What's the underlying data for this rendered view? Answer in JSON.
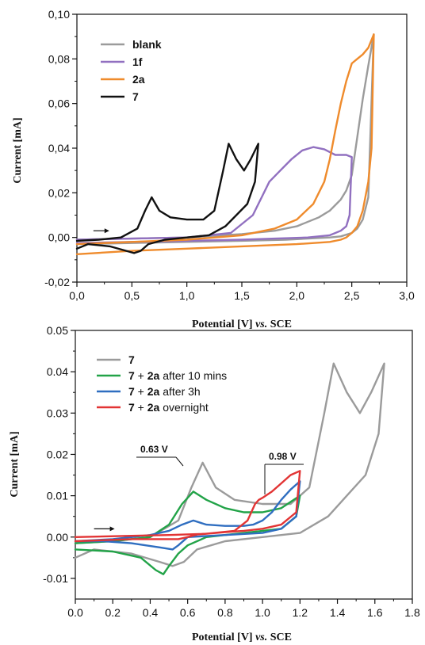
{
  "chart_data": [
    {
      "type": "line",
      "xlabel": {
        "main": "Potential [V] ",
        "italic": "vs.",
        "tail": " SCE"
      },
      "ylabel": "Current [mA]",
      "xlim": [
        0,
        3
      ],
      "ylim": [
        -0.02,
        0.1
      ],
      "xticks": [
        "0,0",
        "0,5",
        "1,0",
        "1,5",
        "2,0",
        "2,5",
        "3,0"
      ],
      "xtick_values": [
        0,
        0.5,
        1,
        1.5,
        2,
        2.5,
        3
      ],
      "yticks": [
        "-0,02",
        "0,00",
        "0,02",
        "0,04",
        "0,06",
        "0,08",
        "0,10"
      ],
      "ytick_values": [
        -0.02,
        0,
        0.02,
        0.04,
        0.06,
        0.08,
        0.1
      ],
      "legend_position": "top-left",
      "scan_direction_arrow": {
        "x": 0.15,
        "y": 0.003
      },
      "series": [
        {
          "name": "blank",
          "bold": true,
          "color": "#9b9b9b",
          "x": [
            0.0,
            0.5,
            1.0,
            1.5,
            1.8,
            2.0,
            2.2,
            2.3,
            2.4,
            2.45,
            2.5,
            2.55,
            2.6,
            2.65,
            2.7,
            2.65,
            2.6,
            2.55,
            2.5,
            2.4,
            2.3,
            2.1,
            1.9,
            1.5,
            1.0,
            0.5,
            0.0
          ],
          "y": [
            -0.001,
            -0.0005,
            0.0,
            0.0015,
            0.003,
            0.005,
            0.009,
            0.012,
            0.017,
            0.021,
            0.028,
            0.045,
            0.062,
            0.077,
            0.091,
            0.018,
            0.008,
            0.004,
            0.002,
            0.0005,
            0.0,
            -0.0005,
            -0.001,
            -0.0015,
            -0.002,
            -0.0025,
            -0.003
          ]
        },
        {
          "name": "1f",
          "bold": true,
          "color": "#9170c0",
          "x": [
            0.0,
            0.5,
            1.0,
            1.4,
            1.6,
            1.68,
            1.75,
            1.85,
            1.95,
            2.05,
            2.15,
            2.25,
            2.35,
            2.45,
            2.5,
            2.48,
            2.45,
            2.4,
            2.3,
            2.1,
            1.8,
            1.5,
            1.0,
            0.5,
            0.0
          ],
          "y": [
            -0.001,
            -0.0005,
            0.0,
            0.002,
            0.01,
            0.018,
            0.025,
            0.03,
            0.035,
            0.039,
            0.0405,
            0.0395,
            0.037,
            0.037,
            0.036,
            0.01,
            0.005,
            0.003,
            0.001,
            0.0,
            -0.0005,
            -0.001,
            -0.0015,
            -0.002,
            -0.0025
          ]
        },
        {
          "name": "2a",
          "bold": true,
          "color": "#ef8b2c",
          "x": [
            0.0,
            0.5,
            1.0,
            1.5,
            1.8,
            2.0,
            2.15,
            2.25,
            2.3,
            2.35,
            2.4,
            2.45,
            2.5,
            2.55,
            2.6,
            2.65,
            2.7,
            2.68,
            2.65,
            2.6,
            2.55,
            2.5,
            2.45,
            2.4,
            2.3,
            2.0,
            1.5,
            1.0,
            0.5,
            0.0
          ],
          "y": [
            -0.003,
            -0.002,
            -0.001,
            0.001,
            0.004,
            0.008,
            0.015,
            0.025,
            0.035,
            0.048,
            0.06,
            0.07,
            0.078,
            0.08,
            0.082,
            0.085,
            0.091,
            0.04,
            0.025,
            0.012,
            0.005,
            0.002,
            0.0,
            -0.001,
            -0.002,
            -0.003,
            -0.004,
            -0.005,
            -0.006,
            -0.0075
          ]
        },
        {
          "name": "7",
          "bold": true,
          "color": "#111111",
          "x": [
            0.0,
            0.2,
            0.4,
            0.55,
            0.62,
            0.68,
            0.75,
            0.85,
            1.0,
            1.15,
            1.25,
            1.33,
            1.38,
            1.45,
            1.52,
            1.58,
            1.65,
            1.62,
            1.55,
            1.45,
            1.35,
            1.2,
            1.0,
            0.8,
            0.65,
            0.58,
            0.52,
            0.45,
            0.3,
            0.1,
            0.0
          ],
          "y": [
            -0.0015,
            -0.001,
            0.0,
            0.004,
            0.012,
            0.018,
            0.012,
            0.009,
            0.008,
            0.008,
            0.012,
            0.03,
            0.042,
            0.035,
            0.03,
            0.035,
            0.042,
            0.025,
            0.015,
            0.01,
            0.005,
            0.001,
            0.0,
            -0.001,
            -0.003,
            -0.006,
            -0.007,
            -0.006,
            -0.004,
            -0.003,
            -0.005
          ]
        }
      ]
    },
    {
      "type": "line",
      "xlabel": {
        "main": "Potential [V] ",
        "italic": "vs.",
        "tail": " SCE"
      },
      "ylabel": "Current [mA]",
      "xlim": [
        0,
        1.8
      ],
      "ylim": [
        -0.015,
        0.05
      ],
      "xticks": [
        "0.0",
        "0.2",
        "0.4",
        "0.6",
        "0.8",
        "1.0",
        "1.2",
        "1.4",
        "1.6",
        "1.8"
      ],
      "xtick_values": [
        0,
        0.2,
        0.4,
        0.6,
        0.8,
        1.0,
        1.2,
        1.4,
        1.6,
        1.8
      ],
      "yticks": [
        "-0.01",
        "0.00",
        "0.01",
        "0.02",
        "0.03",
        "0.04",
        "0.05"
      ],
      "ytick_values": [
        -0.01,
        0,
        0.01,
        0.02,
        0.03,
        0.04,
        0.05
      ],
      "legend_position": "top-left",
      "scan_direction_arrow": {
        "x": 0.1,
        "y": 0.002
      },
      "annotations": [
        {
          "text": "0.63 V",
          "x": 0.68,
          "y": 0.018
        },
        {
          "text": "0.98 V",
          "x": 0.98,
          "y": 0.011
        }
      ],
      "series": [
        {
          "name_parts": [
            {
              "t": "7",
              "b": true
            }
          ],
          "color": "#9b9b9b",
          "x": [
            0.0,
            0.2,
            0.4,
            0.55,
            0.62,
            0.68,
            0.75,
            0.85,
            1.0,
            1.15,
            1.25,
            1.33,
            1.38,
            1.45,
            1.52,
            1.58,
            1.65,
            1.62,
            1.55,
            1.45,
            1.35,
            1.2,
            1.0,
            0.8,
            0.65,
            0.58,
            0.52,
            0.45,
            0.3,
            0.1,
            0.0
          ],
          "y": [
            -0.0015,
            -0.001,
            0.0,
            0.004,
            0.012,
            0.018,
            0.012,
            0.009,
            0.008,
            0.008,
            0.012,
            0.03,
            0.042,
            0.035,
            0.03,
            0.035,
            0.042,
            0.025,
            0.015,
            0.01,
            0.005,
            0.001,
            0.0,
            -0.001,
            -0.003,
            -0.006,
            -0.007,
            -0.006,
            -0.004,
            -0.003,
            -0.005
          ]
        },
        {
          "name_parts": [
            {
              "t": "7",
              "b": true
            },
            {
              "t": " + ",
              "b": false
            },
            {
              "t": "2a",
              "b": true
            },
            {
              "t": " after 10 mins",
              "b": false
            }
          ],
          "color": "#22a348",
          "x": [
            0.0,
            0.2,
            0.4,
            0.5,
            0.57,
            0.63,
            0.7,
            0.8,
            0.9,
            1.0,
            1.1,
            1.15,
            1.2,
            1.18,
            1.1,
            1.0,
            0.9,
            0.8,
            0.7,
            0.6,
            0.55,
            0.5,
            0.47,
            0.43,
            0.35,
            0.2,
            0.0
          ],
          "y": [
            -0.0015,
            -0.001,
            0.0,
            0.003,
            0.008,
            0.011,
            0.009,
            0.007,
            0.006,
            0.006,
            0.007,
            0.0085,
            0.01,
            0.005,
            0.002,
            0.0015,
            0.001,
            0.0005,
            0.0,
            -0.002,
            -0.004,
            -0.007,
            -0.009,
            -0.008,
            -0.005,
            -0.0035,
            -0.003
          ]
        },
        {
          "name_parts": [
            {
              "t": "7",
              "b": true
            },
            {
              "t": " + ",
              "b": false
            },
            {
              "t": "2a",
              "b": true
            },
            {
              "t": " after 3h",
              "b": false
            }
          ],
          "color": "#2f6ec0",
          "x": [
            0.0,
            0.2,
            0.4,
            0.5,
            0.57,
            0.63,
            0.7,
            0.8,
            0.9,
            0.95,
            1.0,
            1.05,
            1.1,
            1.15,
            1.2,
            1.18,
            1.1,
            1.0,
            0.8,
            0.6,
            0.55,
            0.52,
            0.45,
            0.3,
            0.15,
            0.0
          ],
          "y": [
            -0.001,
            -0.0005,
            0.0005,
            0.0015,
            0.003,
            0.004,
            0.003,
            0.0027,
            0.0027,
            0.003,
            0.004,
            0.006,
            0.009,
            0.0115,
            0.0135,
            0.005,
            0.002,
            0.001,
            0.0005,
            0.0,
            -0.002,
            -0.003,
            -0.0025,
            -0.0015,
            -0.001,
            -0.001
          ]
        },
        {
          "name_parts": [
            {
              "t": "7",
              "b": true
            },
            {
              "t": " + ",
              "b": false
            },
            {
              "t": "2a",
              "b": true
            },
            {
              "t": " overnight",
              "b": false
            }
          ],
          "color": "#e23434",
          "x": [
            0.0,
            0.3,
            0.5,
            0.7,
            0.85,
            0.92,
            0.96,
            0.98,
            1.0,
            1.05,
            1.1,
            1.15,
            1.2,
            1.18,
            1.1,
            1.0,
            0.9,
            0.8,
            0.65,
            0.6,
            0.55,
            0.45,
            0.3,
            0.0
          ],
          "y": [
            0.0,
            0.0003,
            0.0005,
            0.0008,
            0.0015,
            0.004,
            0.008,
            0.009,
            0.0095,
            0.011,
            0.013,
            0.015,
            0.016,
            0.006,
            0.003,
            0.002,
            0.0015,
            0.0012,
            0.0006,
            0.0,
            -0.0005,
            -0.0005,
            -0.0005,
            -0.001
          ]
        }
      ]
    }
  ]
}
